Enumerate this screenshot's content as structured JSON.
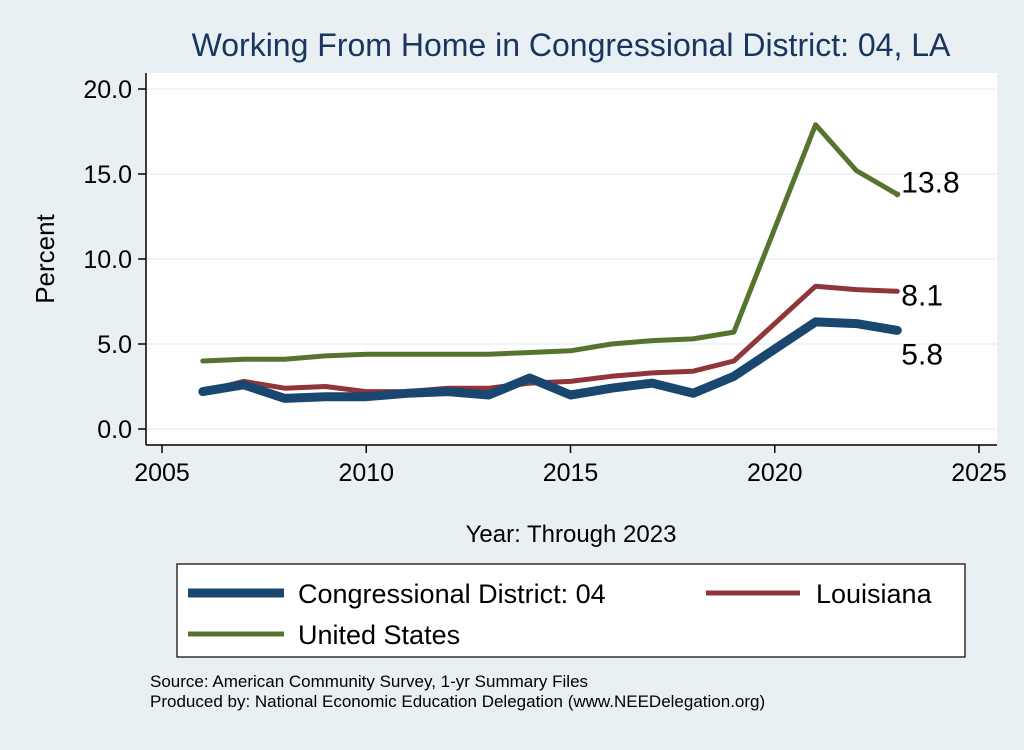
{
  "chart_data": {
    "type": "line",
    "title": "Working From Home in Congressional District: 04, LA",
    "xlabel": "Year: Through 2023",
    "ylabel": "Percent",
    "xlim": [
      2005,
      2025
    ],
    "ylim": [
      0,
      20
    ],
    "x_ticks": [
      2005,
      2010,
      2015,
      2020,
      2025
    ],
    "x_tick_labels": [
      "2005",
      "2010",
      "2015",
      "2020",
      "2025"
    ],
    "y_ticks": [
      0,
      5,
      10,
      15,
      20
    ],
    "y_tick_labels": [
      "0.0",
      "5.0",
      "10.0",
      "15.0",
      "20.0"
    ],
    "grid": true,
    "legend_position": "bottom",
    "x": [
      2006,
      2007,
      2008,
      2009,
      2010,
      2011,
      2012,
      2013,
      2014,
      2015,
      2016,
      2017,
      2018,
      2019,
      2021,
      2022,
      2023
    ],
    "series": [
      {
        "name": "Congressional District: 04",
        "color": "#1a476f",
        "values": [
          2.2,
          2.6,
          1.8,
          1.9,
          1.9,
          2.1,
          2.2,
          2.0,
          3.0,
          2.0,
          2.4,
          2.7,
          2.1,
          3.1,
          6.3,
          6.2,
          5.8
        ],
        "end_label": "5.8"
      },
      {
        "name": "Louisiana",
        "color": "#90353b",
        "values": [
          2.2,
          2.8,
          2.4,
          2.5,
          2.2,
          2.2,
          2.4,
          2.4,
          2.7,
          2.8,
          3.1,
          3.3,
          3.4,
          4.0,
          8.4,
          8.2,
          8.1
        ],
        "end_label": "8.1"
      },
      {
        "name": "United States",
        "color": "#55752f",
        "values": [
          4.0,
          4.1,
          4.1,
          4.3,
          4.4,
          4.4,
          4.4,
          4.4,
          4.5,
          4.6,
          5.0,
          5.2,
          5.3,
          5.7,
          17.9,
          15.2,
          13.8
        ],
        "end_label": "13.8"
      }
    ]
  },
  "footer": {
    "source": "Source: American Community Survey, 1-yr Summary Files",
    "produced": "Produced by: National Economic Education Delegation (www.NEEDelegation.org)"
  }
}
